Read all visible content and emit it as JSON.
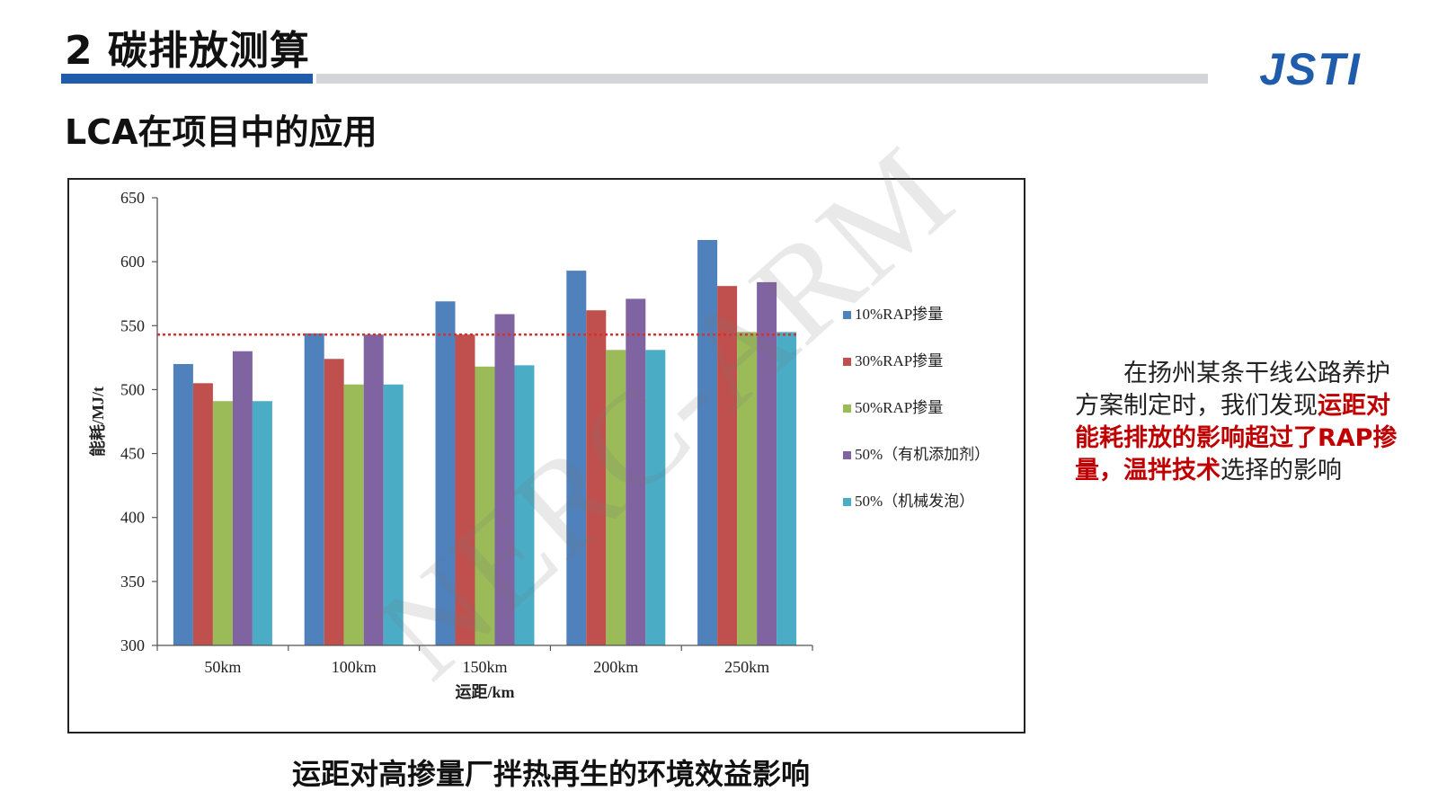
{
  "header": {
    "title": "2 碳排放测算",
    "subtitle": "LCA在项目中的应用",
    "logo_text": "JSTI"
  },
  "colors": {
    "accent_blue": "#1f5cab",
    "bar_gray": "#d3d5d8",
    "highlight_red": "#c00000",
    "reference_line": "#d9302c"
  },
  "chart_data": {
    "type": "bar",
    "categories": [
      "50km",
      "100km",
      "150km",
      "200km",
      "250km"
    ],
    "series": [
      {
        "name": "10%RAP掺量",
        "color": "#4f81bd",
        "values": [
          520,
          544,
          569,
          593,
          617
        ]
      },
      {
        "name": "30%RAP掺量",
        "color": "#c0504d",
        "values": [
          505,
          524,
          543,
          562,
          581
        ]
      },
      {
        "name": "50%RAP掺量",
        "color": "#9bbb59",
        "values": [
          491,
          504,
          518,
          531,
          545
        ]
      },
      {
        "name": "50%（有机添加剂）",
        "color": "#8064a2",
        "values": [
          530,
          543,
          559,
          571,
          584
        ]
      },
      {
        "name": "50%（机械发泡）",
        "color": "#4bacc6",
        "values": [
          491,
          504,
          519,
          531,
          545
        ]
      }
    ],
    "reference_line": 543,
    "ylim": [
      300,
      650
    ],
    "yticks": [
      300,
      350,
      400,
      450,
      500,
      550,
      600,
      650
    ],
    "xlabel": "运距/km",
    "ylabel": "能耗/MJ/t",
    "legend_position": "right",
    "grid": false
  },
  "caption": "运距对高掺量厂拌热再生的环境效益影响",
  "note": {
    "part1": "在扬州某条干线公路养护方案制定时，我们发现",
    "highlight": "运距对能耗排放的影响超过了RAP掺量，温拌技术",
    "part2": "选择的影响"
  },
  "watermark": "NERC-ARM"
}
